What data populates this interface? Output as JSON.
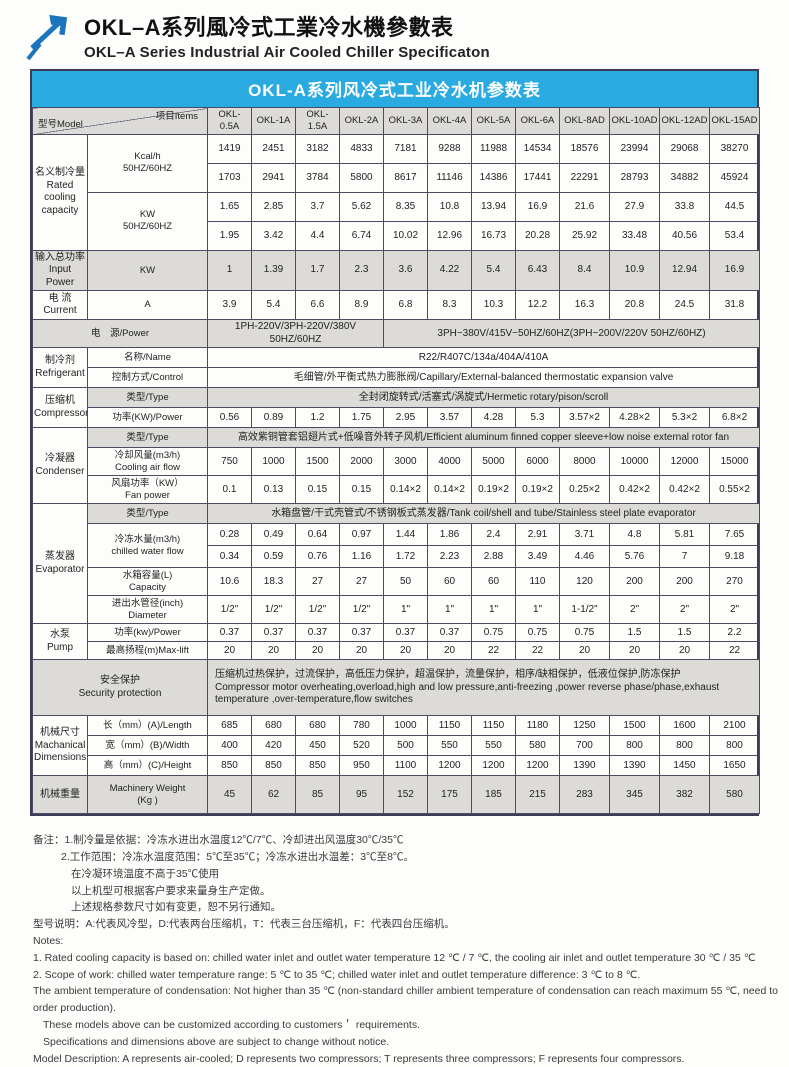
{
  "page": {
    "title_zh": "OKL–A系列風冷式工業冷水機參數表",
    "title_en": "OKL–A Series Industrial Air Cooled Chiller Specificaton",
    "accent_color": "#29abe2",
    "logo_icon": "up-right-arrow-icon"
  },
  "table": {
    "banner": "OKL-A系列风冷式工业冷水机参数表",
    "corner": {
      "model": "型号Model",
      "items": "项目Items"
    },
    "models": [
      "OKL-0.5A",
      "OKL-1A",
      "OKL-1.5A",
      "OKL-2A",
      "OKL-3A",
      "OKL-4A",
      "OKL-5A",
      "OKL-6A",
      "OKL-8AD",
      "OKL-10AD",
      "OKL-12AD",
      "OKL-15AD"
    ],
    "rows": [
      {
        "cls": "h27",
        "cells": [
          {
            "t": "名义制冷量\nRated\ncooling\ncapacity",
            "k": "grp",
            "r": 4
          },
          {
            "t": "Kcal/h\n50HZ/60HZ",
            "k": "itm",
            "r": 2
          }
        ],
        "values": [
          "1419",
          "2451",
          "3182",
          "4833",
          "7181",
          "9288",
          "11988",
          "14534",
          "18576",
          "23994",
          "29068",
          "38270"
        ]
      },
      {
        "cls": "h27",
        "cells": [],
        "values": [
          "1703",
          "2941",
          "3784",
          "5800",
          "8617",
          "11146",
          "14386",
          "17441",
          "22291",
          "28793",
          "34882",
          "45924"
        ]
      },
      {
        "cls": "h27",
        "cells": [
          {
            "t": "KW\n50HZ/60HZ",
            "k": "itm",
            "r": 2
          }
        ],
        "values": [
          "1.65",
          "2.85",
          "3.7",
          "5.62",
          "8.35",
          "10.8",
          "13.94",
          "16.9",
          "21.6",
          "27.9",
          "33.8",
          "44.5"
        ]
      },
      {
        "cls": "h27",
        "cells": [],
        "values": [
          "1.95",
          "3.42",
          "4.4",
          "6.74",
          "10.02",
          "12.96",
          "16.73",
          "20.28",
          "25.92",
          "33.48",
          "40.56",
          "53.4"
        ]
      },
      {
        "cls": "h27",
        "g": true,
        "cells": [
          {
            "t": "输入总功率\nInput Power",
            "k": "grp"
          },
          {
            "t": "KW",
            "k": "itm"
          }
        ],
        "values": [
          "1",
          "1.39",
          "1.7",
          "2.3",
          "3.6",
          "4.22",
          "5.4",
          "6.43",
          "8.4",
          "10.9",
          "12.94",
          "16.9"
        ]
      },
      {
        "cls": "h27",
        "cells": [
          {
            "t": "电 流\nCurrent",
            "k": "grp"
          },
          {
            "t": "A",
            "k": "itm"
          }
        ],
        "values": [
          "3.9",
          "5.4",
          "6.6",
          "8.9",
          "6.8",
          "8.3",
          "10.3",
          "12.2",
          "16.3",
          "20.8",
          "24.5",
          "31.8"
        ]
      },
      {
        "cls": "h20",
        "g": true,
        "cells": [
          {
            "t": "电　源/Power",
            "k": "itm",
            "c": 2
          },
          {
            "t": "1PH-220V/3PH-220V/380V 50HZ/60HZ",
            "c": 4
          },
          {
            "t": "3PH~380V/415V~50HZ/60HZ(3PH~200V/220V  50HZ/60HZ)",
            "c": 8
          }
        ]
      },
      {
        "cls": "h20",
        "cells": [
          {
            "t": "制冷剂\nRefrigerant",
            "k": "grp",
            "r": 2
          },
          {
            "t": "名称/Name",
            "k": "itm"
          },
          {
            "t": "R22/R407C/134a/404A/410A",
            "c": 12
          }
        ]
      },
      {
        "cls": "h20",
        "cells": [
          {
            "t": "控制方式/Control",
            "k": "itm"
          },
          {
            "t": "毛细管/外平衡式热力膨胀阀/Capillary/External-balanced thermostatic expansion valve",
            "c": 12
          }
        ]
      },
      {
        "cls": "h20",
        "cells": [
          {
            "t": "压缩机\nCompressor",
            "k": "grp",
            "r": 2
          },
          {
            "t": "类型/Type",
            "k": "itm",
            "g": true
          },
          {
            "t": "全封闭旋转式/活塞式/涡旋式/Hermetic rotary/pison/scroll",
            "c": 12,
            "g": true
          }
        ]
      },
      {
        "cls": "h20",
        "cells": [
          {
            "t": "功率(KW)/Power",
            "k": "itm"
          }
        ],
        "values": [
          "0.56",
          "0.89",
          "1.2",
          "1.75",
          "2.95",
          "3.57",
          "4.28",
          "5.3",
          "3.57×2",
          "4.28×2",
          "5.3×2",
          "6.8×2"
        ]
      },
      {
        "cls": "h20",
        "cells": [
          {
            "t": "冷凝器\nCondenser",
            "k": "grp",
            "r": 3
          },
          {
            "t": "类型/Type",
            "k": "itm",
            "g": true
          },
          {
            "t": "高效紫铜管套铝翅片式+低噪音外转子风机/Efficient aluminum finned copper sleeve+low noise external rotor fan",
            "c": 12,
            "g": true
          }
        ]
      },
      {
        "cls": "h26",
        "cells": [
          {
            "t": "冷却风量(m3/h)\nCooling air flow",
            "k": "itm"
          }
        ],
        "values": [
          "750",
          "1000",
          "1500",
          "2000",
          "3000",
          "4000",
          "5000",
          "6000",
          "8000",
          "10000",
          "12000",
          "15000"
        ]
      },
      {
        "cls": "h26",
        "cells": [
          {
            "t": "风扇功率（KW）\nFan power",
            "k": "itm"
          }
        ],
        "values": [
          "0.1",
          "0.13",
          "0.15",
          "0.15",
          "0.14×2",
          "0.14×2",
          "0.19×2",
          "0.19×2",
          "0.25×2",
          "0.42×2",
          "0.42×2",
          "0.55×2"
        ]
      },
      {
        "cls": "h20",
        "cells": [
          {
            "t": "蒸发器\nEvaporator",
            "k": "grp",
            "r": 5
          },
          {
            "t": "类型/Type",
            "k": "itm",
            "g": true
          },
          {
            "t": "水箱盘管/干式壳管式/不锈钢板式蒸发器/Tank coil/shell and tube/Stainless steel plate evaporator",
            "c": 12,
            "g": true
          }
        ]
      },
      {
        "cls": "h22",
        "cells": [
          {
            "t": "冷冻水量(m3/h)\nchilled water flow",
            "k": "itm",
            "r": 2
          }
        ],
        "values": [
          "0.28",
          "0.49",
          "0.64",
          "0.97",
          "1.44",
          "1.86",
          "2.4",
          "2.91",
          "3.71",
          "4.8",
          "5.81",
          "7.65"
        ]
      },
      {
        "cls": "h22",
        "cells": [],
        "values": [
          "0.34",
          "0.59",
          "0.76",
          "1.16",
          "1.72",
          "2.23",
          "2.88",
          "3.49",
          "4.46",
          "5.76",
          "7",
          "9.18"
        ]
      },
      {
        "cls": "h26",
        "cells": [
          {
            "t": "水箱容量(L)\nCapacity",
            "k": "itm"
          }
        ],
        "values": [
          "10.6",
          "18.3",
          "27",
          "27",
          "50",
          "60",
          "60",
          "110",
          "120",
          "200",
          "200",
          "270"
        ]
      },
      {
        "cls": "h26",
        "cells": [
          {
            "t": "进出水管径(inch)\nDiameter",
            "k": "itm"
          }
        ],
        "values": [
          "1/2\"",
          "1/2\"",
          "1/2\"",
          "1/2\"",
          "1\"",
          "1\"",
          "1\"",
          "1\"",
          "1-1/2\"",
          "2\"",
          "2\"",
          "2\""
        ]
      },
      {
        "cls": "h16",
        "cells": [
          {
            "t": "水泵\nPump",
            "k": "grp",
            "r": 2
          },
          {
            "t": "功率(kw)/Power",
            "k": "itm"
          }
        ],
        "values": [
          "0.37",
          "0.37",
          "0.37",
          "0.37",
          "0.37",
          "0.37",
          "0.75",
          "0.75",
          "0.75",
          "1.5",
          "1.5",
          "2.2"
        ]
      },
      {
        "cls": "h16",
        "cells": [
          {
            "t": "最高扬程(m)Max-lift",
            "k": "itm"
          }
        ],
        "values": [
          "20",
          "20",
          "20",
          "20",
          "20",
          "20",
          "22",
          "22",
          "20",
          "20",
          "20",
          "22"
        ]
      },
      {
        "cls": "h54",
        "g": true,
        "cells": [
          {
            "t": "安全保护\nSecurity protection",
            "k": "grp",
            "c": 2
          },
          {
            "t": "压缩机过热保护，过流保护，高低压力保护，超温保护，流量保护，相序/缺相保护，低液位保护,防冻保护\nCompressor motor overheating,overload,high and low pressure,anti-freezing ,power reverse phase/phase,exhaust temperature ,over-temperature,flow switches",
            "c": 12,
            "a": "left"
          }
        ]
      },
      {
        "cls": "h20",
        "cells": [
          {
            "t": "机械尺寸\nMachanical\nDimensions",
            "k": "grp",
            "r": 3
          },
          {
            "t": "长（mm）(A)/Length",
            "k": "itm"
          }
        ],
        "values": [
          "685",
          "680",
          "680",
          "780",
          "1000",
          "1150",
          "1150",
          "1180",
          "1250",
          "1500",
          "1600",
          "2100"
        ]
      },
      {
        "cls": "h20",
        "cells": [
          {
            "t": "宽（mm）(B)/Width",
            "k": "itm"
          }
        ],
        "values": [
          "400",
          "420",
          "450",
          "520",
          "500",
          "550",
          "550",
          "580",
          "700",
          "800",
          "800",
          "800"
        ]
      },
      {
        "cls": "h20",
        "cells": [
          {
            "t": "高（mm）(C)/Height",
            "k": "itm"
          }
        ],
        "values": [
          "850",
          "850",
          "850",
          "950",
          "1100",
          "1200",
          "1200",
          "1200",
          "1390",
          "1390",
          "1450",
          "1650"
        ]
      },
      {
        "cls": "h34",
        "g": true,
        "cells": [
          {
            "t": "机械重量",
            "k": "grp"
          },
          {
            "t": "Machinery Weight\n(Kg )",
            "k": "itm"
          }
        ],
        "values": [
          "45",
          "62",
          "85",
          "95",
          "152",
          "175",
          "185",
          "215",
          "283",
          "345",
          "382",
          "580"
        ]
      }
    ]
  },
  "notes": {
    "lines": [
      {
        "t": "备注：1.制冷量是依据：冷冻水进出水温度12℃/7℃、冷却进出风温度30℃/35℃",
        "ind": 0
      },
      {
        "t": "2.工作范围：冷冻水温度范围：5℃至35℃；冷冻水进出水温差：3℃至8℃。",
        "ind": 28
      },
      {
        "t": "在冷凝环境温度不高于35℃使用",
        "ind": 38
      },
      {
        "t": "以上机型可根据客户要求来量身生产定做。",
        "ind": 38
      },
      {
        "t": "上述规格参数尺寸如有变更，恕不另行通知。",
        "ind": 38
      },
      {
        "t": "型号说明：A:代表风冷型，D:代表两台压缩机，T：代表三台压缩机，F：代表四台压缩机。",
        "ind": 0
      },
      {
        "t": "Notes:",
        "ind": 0
      },
      {
        "t": "1. Rated cooling capacity is based on: chilled water inlet and outlet water temperature 12 ℃ / 7 ℃, the cooling air inlet and outlet temperature 30 ℃ / 35 ℃",
        "ind": 0
      },
      {
        "t": "2. Scope of work: chilled water temperature range: 5 ℃ to 35 ℃; chilled water inlet and outlet temperature difference: 3 ℃ to 8 ℃.",
        "ind": 0
      },
      {
        "t": "The ambient temperature of condensation: Not higher than 35 ℃ (non-standard chiller ambient temperature of condensation can reach maximum 55 ℃, need to order production).",
        "ind": 0
      },
      {
        "t": "These models above can be customized according to customers＇ requirements.",
        "ind": 10
      },
      {
        "t": "Specifications and dimensions above are subject to change without notice.",
        "ind": 10
      },
      {
        "t": "Model Description: A represents air-cooled; D represents two compressors; T represents three compressors; F represents four compressors.",
        "ind": 0
      }
    ]
  }
}
